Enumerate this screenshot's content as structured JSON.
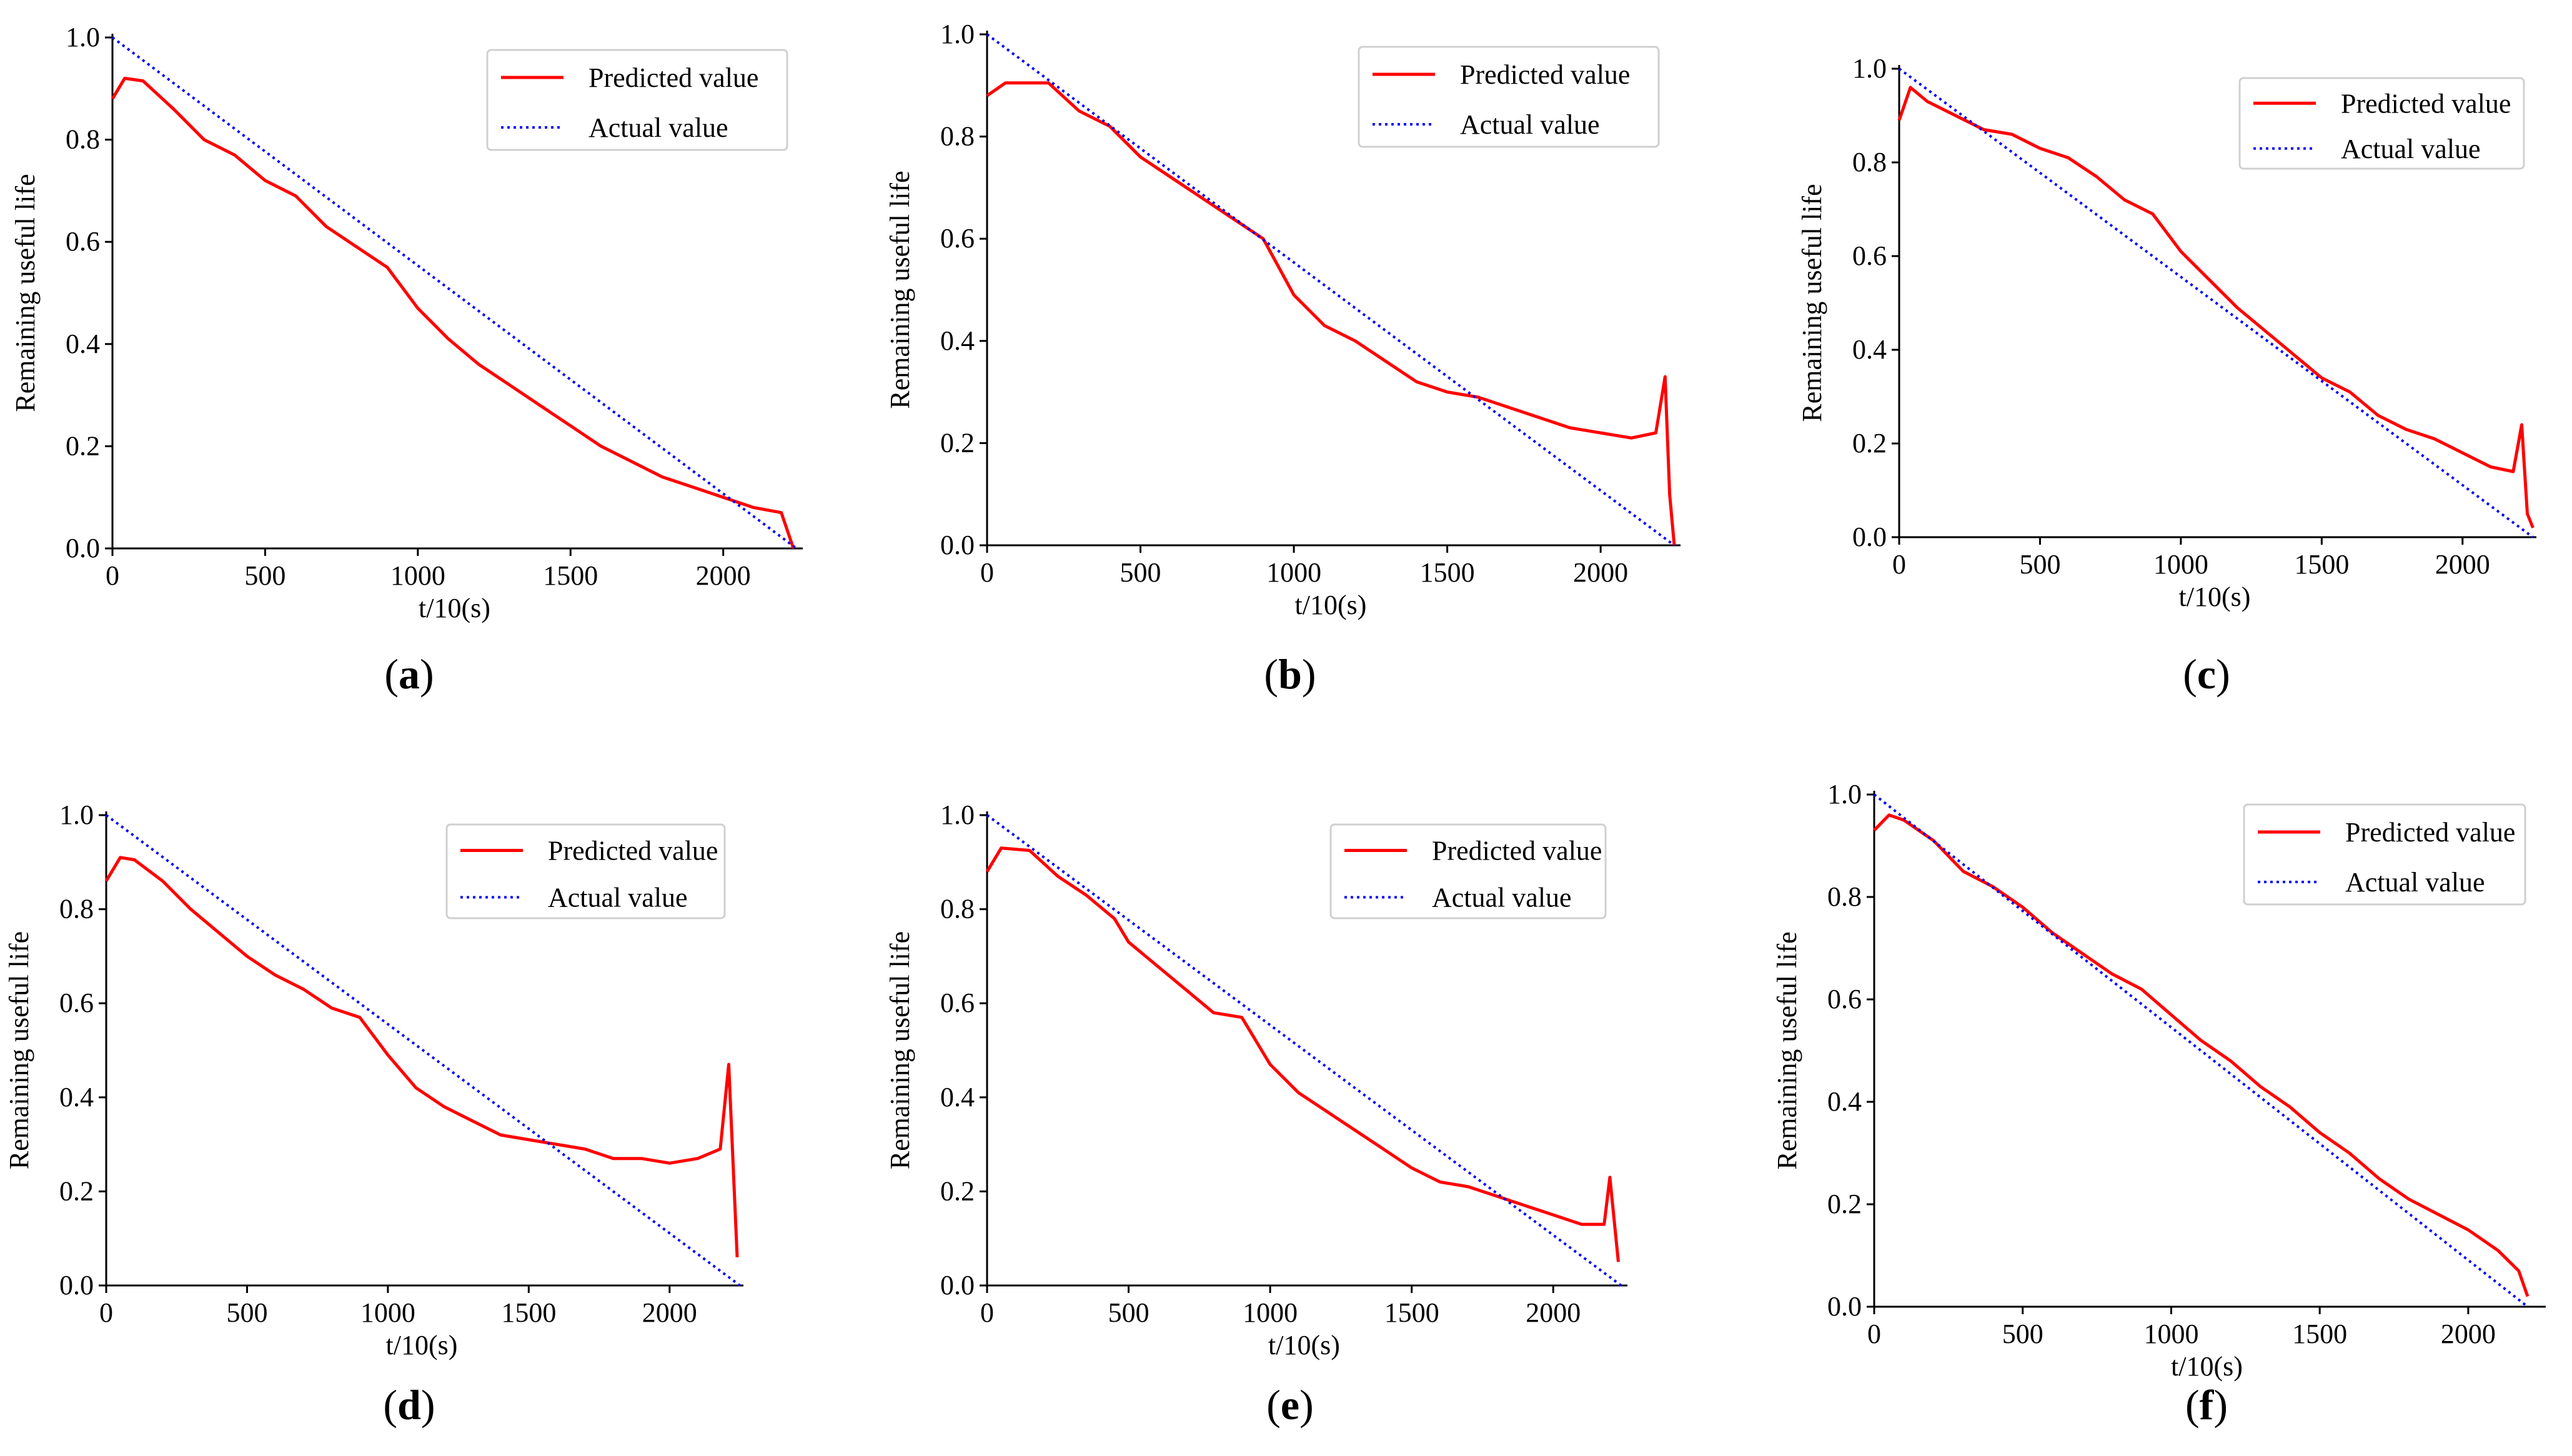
{
  "chart_data": [
    {
      "type": "line",
      "label": "a",
      "xlabel": "t/10(s)",
      "ylabel": "Remaining useful life",
      "xlim": [
        0,
        2240
      ],
      "ylim": [
        0,
        1
      ],
      "xticks": [
        0,
        500,
        1000,
        1500,
        2000
      ],
      "yticks": [
        0.0,
        0.2,
        0.4,
        0.6,
        0.8,
        1.0
      ],
      "legend_position": "top-right",
      "series": [
        {
          "name": "Predicted value",
          "color": "#ff0000",
          "style": "solid",
          "points": [
            [
              0,
              0.88
            ],
            [
              40,
              0.92
            ],
            [
              100,
              0.915
            ],
            [
              200,
              0.86
            ],
            [
              300,
              0.8
            ],
            [
              400,
              0.77
            ],
            [
              500,
              0.72
            ],
            [
              600,
              0.69
            ],
            [
              700,
              0.63
            ],
            [
              800,
              0.59
            ],
            [
              900,
              0.55
            ],
            [
              1000,
              0.47
            ],
            [
              1100,
              0.41
            ],
            [
              1200,
              0.36
            ],
            [
              1300,
              0.32
            ],
            [
              1400,
              0.28
            ],
            [
              1500,
              0.24
            ],
            [
              1600,
              0.2
            ],
            [
              1700,
              0.17
            ],
            [
              1800,
              0.14
            ],
            [
              1900,
              0.12
            ],
            [
              2000,
              0.1
            ],
            [
              2100,
              0.08
            ],
            [
              2190,
              0.07
            ],
            [
              2230,
              0.0
            ]
          ]
        },
        {
          "name": "Actual value",
          "color": "#0000ff",
          "style": "dotted",
          "points": [
            [
              0,
              1.0
            ],
            [
              2240,
              0.0
            ]
          ]
        }
      ]
    },
    {
      "type": "line",
      "label": "b",
      "xlabel": "t/10(s)",
      "ylabel": "Remaining useful life",
      "xlim": [
        0,
        2240
      ],
      "ylim": [
        0,
        1
      ],
      "xticks": [
        0,
        500,
        1000,
        1500,
        2000
      ],
      "yticks": [
        0.0,
        0.2,
        0.4,
        0.6,
        0.8,
        1.0
      ],
      "legend_position": "top-right",
      "series": [
        {
          "name": "Predicted value",
          "color": "#ff0000",
          "style": "solid",
          "points": [
            [
              0,
              0.88
            ],
            [
              60,
              0.905
            ],
            [
              200,
              0.905
            ],
            [
              300,
              0.85
            ],
            [
              400,
              0.82
            ],
            [
              500,
              0.76
            ],
            [
              600,
              0.72
            ],
            [
              700,
              0.68
            ],
            [
              800,
              0.64
            ],
            [
              900,
              0.6
            ],
            [
              1000,
              0.49
            ],
            [
              1100,
              0.43
            ],
            [
              1200,
              0.4
            ],
            [
              1300,
              0.36
            ],
            [
              1400,
              0.32
            ],
            [
              1500,
              0.3
            ],
            [
              1600,
              0.29
            ],
            [
              1700,
              0.27
            ],
            [
              1800,
              0.25
            ],
            [
              1900,
              0.23
            ],
            [
              2000,
              0.22
            ],
            [
              2100,
              0.21
            ],
            [
              2180,
              0.22
            ],
            [
              2210,
              0.33
            ],
            [
              2225,
              0.1
            ],
            [
              2240,
              0.0
            ]
          ]
        },
        {
          "name": "Actual value",
          "color": "#0000ff",
          "style": "dotted",
          "points": [
            [
              0,
              1.0
            ],
            [
              2240,
              0.0
            ]
          ]
        }
      ]
    },
    {
      "type": "line",
      "label": "c",
      "xlabel": "t/10(s)",
      "ylabel": "Remaining useful life",
      "xlim": [
        0,
        2240
      ],
      "ylim": [
        0,
        1
      ],
      "xticks": [
        0,
        500,
        1000,
        1500,
        2000
      ],
      "yticks": [
        0.0,
        0.2,
        0.4,
        0.6,
        0.8,
        1.0
      ],
      "legend_position": "top-right",
      "series": [
        {
          "name": "Predicted value",
          "color": "#ff0000",
          "style": "solid",
          "points": [
            [
              0,
              0.89
            ],
            [
              40,
              0.96
            ],
            [
              100,
              0.93
            ],
            [
              200,
              0.9
            ],
            [
              300,
              0.87
            ],
            [
              400,
              0.86
            ],
            [
              500,
              0.83
            ],
            [
              600,
              0.81
            ],
            [
              700,
              0.77
            ],
            [
              800,
              0.72
            ],
            [
              900,
              0.69
            ],
            [
              1000,
              0.61
            ],
            [
              1100,
              0.55
            ],
            [
              1200,
              0.49
            ],
            [
              1300,
              0.44
            ],
            [
              1400,
              0.39
            ],
            [
              1500,
              0.34
            ],
            [
              1600,
              0.31
            ],
            [
              1700,
              0.26
            ],
            [
              1800,
              0.23
            ],
            [
              1900,
              0.21
            ],
            [
              2000,
              0.18
            ],
            [
              2100,
              0.15
            ],
            [
              2180,
              0.14
            ],
            [
              2210,
              0.24
            ],
            [
              2230,
              0.05
            ],
            [
              2250,
              0.02
            ]
          ]
        },
        {
          "name": "Actual value",
          "color": "#0000ff",
          "style": "dotted",
          "points": [
            [
              0,
              1.0
            ],
            [
              2250,
              0.0
            ]
          ]
        }
      ]
    },
    {
      "type": "line",
      "label": "d",
      "xlabel": "t/10(s)",
      "ylabel": "Remaining useful life",
      "xlim": [
        0,
        2240
      ],
      "ylim": [
        0,
        1
      ],
      "xticks": [
        0,
        500,
        1000,
        1500,
        2000
      ],
      "yticks": [
        0.0,
        0.2,
        0.4,
        0.6,
        0.8,
        1.0
      ],
      "legend_position": "top-right",
      "series": [
        {
          "name": "Predicted value",
          "color": "#ff0000",
          "style": "solid",
          "points": [
            [
              0,
              0.86
            ],
            [
              50,
              0.91
            ],
            [
              100,
              0.905
            ],
            [
              200,
              0.86
            ],
            [
              300,
              0.8
            ],
            [
              400,
              0.75
            ],
            [
              500,
              0.7
            ],
            [
              600,
              0.66
            ],
            [
              700,
              0.63
            ],
            [
              800,
              0.59
            ],
            [
              900,
              0.57
            ],
            [
              1000,
              0.49
            ],
            [
              1100,
              0.42
            ],
            [
              1200,
              0.38
            ],
            [
              1300,
              0.35
            ],
            [
              1400,
              0.32
            ],
            [
              1500,
              0.31
            ],
            [
              1600,
              0.3
            ],
            [
              1700,
              0.29
            ],
            [
              1800,
              0.27
            ],
            [
              1900,
              0.27
            ],
            [
              2000,
              0.26
            ],
            [
              2100,
              0.27
            ],
            [
              2180,
              0.29
            ],
            [
              2210,
              0.47
            ],
            [
              2240,
              0.06
            ]
          ]
        },
        {
          "name": "Actual value",
          "color": "#0000ff",
          "style": "dotted",
          "points": [
            [
              0,
              1.0
            ],
            [
              2250,
              0.0
            ]
          ]
        }
      ]
    },
    {
      "type": "line",
      "label": "e",
      "xlabel": "t/10(s)",
      "ylabel": "Remaining useful life",
      "xlim": [
        0,
        2240
      ],
      "ylim": [
        0,
        1
      ],
      "xticks": [
        0,
        500,
        1000,
        1500,
        2000
      ],
      "yticks": [
        0.0,
        0.2,
        0.4,
        0.6,
        0.8,
        1.0
      ],
      "legend_position": "top-right",
      "series": [
        {
          "name": "Predicted value",
          "color": "#ff0000",
          "style": "solid",
          "points": [
            [
              0,
              0.88
            ],
            [
              50,
              0.93
            ],
            [
              150,
              0.925
            ],
            [
              250,
              0.87
            ],
            [
              350,
              0.83
            ],
            [
              450,
              0.78
            ],
            [
              500,
              0.73
            ],
            [
              600,
              0.68
            ],
            [
              700,
              0.63
            ],
            [
              800,
              0.58
            ],
            [
              900,
              0.57
            ],
            [
              1000,
              0.47
            ],
            [
              1100,
              0.41
            ],
            [
              1200,
              0.37
            ],
            [
              1300,
              0.33
            ],
            [
              1400,
              0.29
            ],
            [
              1500,
              0.25
            ],
            [
              1600,
              0.22
            ],
            [
              1700,
              0.21
            ],
            [
              1800,
              0.19
            ],
            [
              1900,
              0.17
            ],
            [
              2000,
              0.15
            ],
            [
              2100,
              0.13
            ],
            [
              2180,
              0.13
            ],
            [
              2200,
              0.23
            ],
            [
              2230,
              0.05
            ]
          ]
        },
        {
          "name": "Actual value",
          "color": "#0000ff",
          "style": "dotted",
          "points": [
            [
              0,
              1.0
            ],
            [
              2240,
              0.0
            ]
          ]
        }
      ]
    },
    {
      "type": "line",
      "label": "f",
      "xlabel": "t/10(s)",
      "ylabel": "Remaining useful life",
      "xlim": [
        0,
        2240
      ],
      "ylim": [
        0,
        1
      ],
      "xticks": [
        0,
        500,
        1000,
        1500,
        2000
      ],
      "yticks": [
        0.0,
        0.2,
        0.4,
        0.6,
        0.8,
        1.0
      ],
      "legend_position": "top-right",
      "series": [
        {
          "name": "Predicted value",
          "color": "#ff0000",
          "style": "solid",
          "points": [
            [
              0,
              0.93
            ],
            [
              50,
              0.96
            ],
            [
              100,
              0.95
            ],
            [
              200,
              0.91
            ],
            [
              300,
              0.85
            ],
            [
              400,
              0.82
            ],
            [
              500,
              0.78
            ],
            [
              600,
              0.73
            ],
            [
              700,
              0.69
            ],
            [
              800,
              0.65
            ],
            [
              900,
              0.62
            ],
            [
              1000,
              0.57
            ],
            [
              1100,
              0.52
            ],
            [
              1200,
              0.48
            ],
            [
              1300,
              0.43
            ],
            [
              1400,
              0.39
            ],
            [
              1500,
              0.34
            ],
            [
              1600,
              0.3
            ],
            [
              1700,
              0.25
            ],
            [
              1800,
              0.21
            ],
            [
              1900,
              0.18
            ],
            [
              2000,
              0.15
            ],
            [
              2100,
              0.11
            ],
            [
              2170,
              0.07
            ],
            [
              2200,
              0.02
            ]
          ]
        },
        {
          "name": "Actual value",
          "color": "#0000ff",
          "style": "dotted",
          "points": [
            [
              0,
              1.0
            ],
            [
              2200,
              0.0
            ]
          ]
        }
      ]
    }
  ]
}
